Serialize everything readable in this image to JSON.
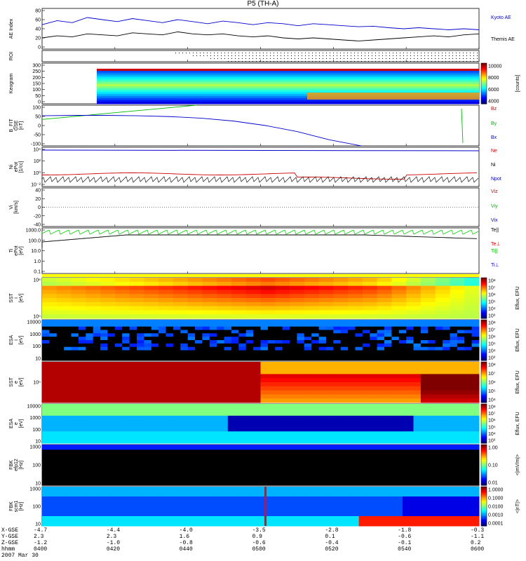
{
  "title": "P5 (TH-A)",
  "colors": {
    "kyoto_ae": "#0000cc",
    "themis_ae": "#000000",
    "bz": "#cc0000",
    "by": "#00bb00",
    "bx": "#0000cc",
    "ne": "#cc0000",
    "ni": "#000000",
    "npot": "#0000cc",
    "spec_high": "#ff0000",
    "spec_low": "#0000ff"
  },
  "chart_data": [
    {
      "type": "line",
      "panel": "ae",
      "ylabel": "AE Index",
      "yticks": [
        "80",
        "60",
        "40",
        "20",
        "0"
      ],
      "ylim": [
        0,
        80
      ],
      "series": [
        {
          "name": "Kyoto AE",
          "values": [
            48,
            56,
            52,
            62,
            58,
            54,
            60,
            56,
            52,
            58,
            54,
            50,
            55,
            52,
            48,
            52,
            50,
            46,
            50,
            48,
            46,
            44,
            45,
            42,
            40,
            42,
            40,
            38,
            40,
            38
          ]
        },
        {
          "name": "Themis AE",
          "values": [
            22,
            26,
            24,
            30,
            28,
            26,
            32,
            30,
            28,
            34,
            30,
            28,
            30,
            26,
            24,
            26,
            22,
            20,
            22,
            20,
            18,
            16,
            18,
            20,
            22,
            24,
            26,
            24,
            28,
            30
          ]
        }
      ]
    },
    {
      "type": "scatter",
      "panel": "roi",
      "ylabel": "ROI"
    },
    {
      "type": "heatmap",
      "panel": "keogram",
      "ylabel": "Keogram",
      "yticks": [
        "300",
        "250",
        "200",
        "150",
        "100",
        "50",
        "0"
      ],
      "colorbar": {
        "ticks": [
          "10000",
          "8000",
          "6000",
          "4000"
        ],
        "label": "[counts]"
      }
    },
    {
      "type": "line",
      "panel": "bfield",
      "ylabel": "B_FIT\nGSE\n[nT]",
      "yticks": [
        "100",
        "50",
        "0",
        "-50",
        "-100"
      ],
      "ylim": [
        -100,
        100
      ],
      "series": [
        {
          "name": "Bz",
          "values": []
        },
        {
          "name": "By",
          "values": [
            30,
            40,
            50,
            60,
            70,
            80,
            90,
            100
          ]
        },
        {
          "name": "Bx",
          "values": [
            48,
            50,
            50,
            48,
            44,
            36,
            22,
            0,
            -30,
            -70,
            -100
          ]
        }
      ]
    },
    {
      "type": "line",
      "panel": "density",
      "ylabel": "Ni\nePot\n[1/cc]",
      "yticks": [
        "10⁴",
        "10²",
        "10⁰",
        "10⁻²"
      ],
      "series": [
        {
          "name": "Ne",
          "values": []
        },
        {
          "name": "Ni",
          "values": []
        },
        {
          "name": "Npot",
          "values": []
        }
      ]
    },
    {
      "type": "line",
      "panel": "velocity",
      "ylabel": "Vi\n[km/s]",
      "yticks": [
        "40",
        "20",
        "0",
        "-20",
        "-40"
      ],
      "ylim": [
        -50,
        50
      ],
      "series": [
        {
          "name": "Viz",
          "values": []
        },
        {
          "name": "Viy",
          "values": []
        },
        {
          "name": "Vix",
          "values": []
        }
      ]
    },
    {
      "type": "line",
      "panel": "temperature",
      "ylabel": "Ti\nePot\n[eV]",
      "yticks": [
        "1000.0",
        "100.0",
        "10.0",
        "1.0",
        "0.1"
      ],
      "series": [
        {
          "name": "Te||",
          "values": []
        },
        {
          "name": "Te⊥",
          "values": []
        },
        {
          "name": "Ti||",
          "values": []
        },
        {
          "name": "Ti⊥",
          "values": []
        }
      ]
    },
    {
      "type": "heatmap",
      "panel": "sst_i",
      "ylabel": "SST\ni\n[eV]",
      "yticks": [
        "10⁶",
        "10⁵"
      ],
      "colorbar": {
        "ticks": [
          "10⁸",
          "10⁷",
          "10⁶",
          "10⁵",
          "10⁴",
          "10³"
        ],
        "label": "Eflux, EFU"
      }
    },
    {
      "type": "heatmap",
      "panel": "esa_i",
      "ylabel": "ESA\ni\n[eV]",
      "yticks": [
        "10000",
        "1000",
        "100",
        "10"
      ],
      "colorbar": {
        "ticks": [
          "10⁸",
          "10⁷",
          "10⁶",
          "10⁵",
          "10⁴",
          "10³"
        ],
        "label": "Eflux, EFU"
      }
    },
    {
      "type": "heatmap",
      "panel": "sst_e",
      "ylabel": "SST\ne\n[eV]",
      "yticks": [
        "10⁵"
      ],
      "colorbar": {
        "ticks": [
          "10⁸",
          "10⁷",
          "10⁶",
          "10⁵",
          "10⁴"
        ],
        "label": "Eflux, EFU"
      }
    },
    {
      "type": "heatmap",
      "panel": "esa_e",
      "ylabel": "ESA\ne\n[eV]",
      "yticks": [
        "10000",
        "1000",
        "100",
        "10"
      ],
      "colorbar": {
        "ticks": [
          "10⁸",
          "10⁷",
          "10⁶",
          "10⁵",
          "10⁴",
          "10³"
        ],
        "label": "Eflux, EFU"
      }
    },
    {
      "type": "heatmap",
      "panel": "fbk_e",
      "ylabel": "FBK\nefp12\n[Hz]",
      "yticks": [
        "1000",
        "100",
        "10"
      ],
      "colorbar": {
        "ticks": [
          "1.00",
          "0.10",
          "0.01"
        ],
        "label": "<|mV/m|>"
      }
    },
    {
      "type": "heatmap",
      "panel": "fbk_b",
      "ylabel": "FBK\nscm1\n[Hz]",
      "yticks": [
        "1000",
        "100",
        "10"
      ],
      "colorbar": {
        "ticks": [
          "1.0000",
          "0.1000",
          "0.0100",
          "0.0010",
          "0.0001"
        ],
        "label": "<|nT|>"
      }
    }
  ],
  "legends": {
    "ae": [
      "Kyoto AE",
      "Themis AE"
    ],
    "bfield": [
      "Bz",
      "By",
      "Bx"
    ],
    "density": [
      "Ne",
      "Ni",
      "Npot"
    ],
    "velocity": [
      "Viz",
      "Viy",
      "Vix"
    ],
    "temperature": [
      "Te||",
      "Te⊥",
      "Ti||",
      "Ti⊥"
    ]
  },
  "footer": {
    "row_labels": [
      "X-GSE",
      "Y-GSE",
      "Z-GSE",
      "hhmm",
      "2007 Mar 30"
    ],
    "columns": [
      [
        "-4.7",
        "2.3",
        "-1.2",
        "0400"
      ],
      [
        "-4.4",
        "2.3",
        "-1.0",
        "0420"
      ],
      [
        "-4.0",
        "1.6",
        "-0.8",
        "0440"
      ],
      [
        "-3.5",
        "0.9",
        "-0.6",
        "0500"
      ],
      [
        "-2.8",
        "0.1",
        "-0.4",
        "0520"
      ],
      [
        "-1.8",
        "-0.6",
        "-0.1",
        "0540"
      ],
      [
        "-0.3",
        "-1.1",
        "0.2",
        "0600"
      ]
    ]
  }
}
